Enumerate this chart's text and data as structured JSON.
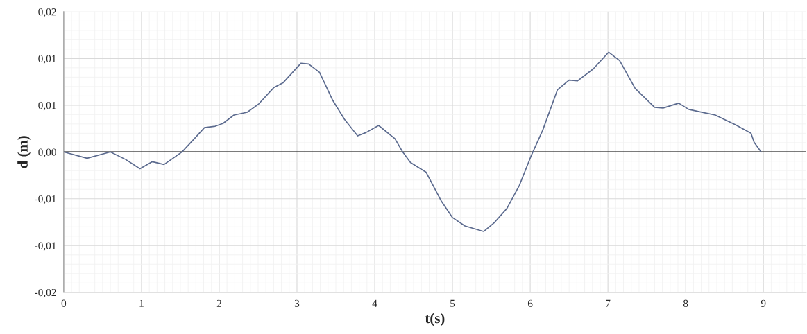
{
  "chart_data": {
    "type": "line",
    "xlabel": "t(s)",
    "ylabel": "d (m)",
    "x": [
      0,
      0.3,
      0.6,
      0.8,
      0.98,
      1.14,
      1.29,
      1.52,
      1.68,
      1.81,
      1.95,
      2.05,
      2.19,
      2.36,
      2.51,
      2.7,
      2.82,
      3.05,
      3.15,
      3.29,
      3.46,
      3.61,
      3.78,
      3.89,
      4.05,
      4.26,
      4.36,
      4.46,
      4.66,
      4.86,
      5.0,
      5.16,
      5.4,
      5.54,
      5.7,
      5.86,
      6.01,
      6.16,
      6.35,
      6.5,
      6.61,
      6.81,
      7.01,
      7.15,
      7.35,
      7.6,
      7.71,
      7.91,
      8.04,
      8.38,
      8.49,
      8.64,
      8.84,
      8.88,
      8.97
    ],
    "series": [
      {
        "color": "#5b6a8e",
        "values": [
          0,
          -0.00067,
          0,
          -0.00082,
          -0.00179,
          -0.00104,
          -0.00134,
          0,
          0.00142,
          0.00261,
          0.00276,
          0.00306,
          0.00395,
          0.00425,
          0.00515,
          0.00687,
          0.00739,
          0.00948,
          0.0094,
          0.00851,
          0.00552,
          0.00351,
          0.00172,
          0.00209,
          0.00284,
          0.00142,
          0,
          -0.00112,
          -0.00216,
          -0.0053,
          -0.00701,
          -0.00791,
          -0.0085,
          -0.00754,
          -0.00604,
          -0.00358,
          -0.00045,
          0.00231,
          0.00664,
          0.00768,
          0.00761,
          0.00888,
          0.01067,
          0.00977,
          0.00679,
          0.00477,
          0.0047,
          0.00522,
          0.00455,
          0.00395,
          0.00351,
          0.00291,
          0.00201,
          0.00104,
          0
        ]
      }
    ],
    "xlim": [
      0,
      9.55
    ],
    "xticks": [
      0,
      1,
      2,
      3,
      4,
      5,
      6,
      7,
      8,
      9
    ],
    "ylim": [
      -0.015,
      0.015
    ],
    "yticks": [
      {
        "value": -0.015,
        "label": "-0,02"
      },
      {
        "value": -0.01,
        "label": "-0,01"
      },
      {
        "value": -0.005,
        "label": "-0,01"
      },
      {
        "value": 0,
        "label": "0,00"
      },
      {
        "value": 0.005,
        "label": "0,01"
      },
      {
        "value": 0.01,
        "label": "0,01"
      },
      {
        "value": 0.015,
        "label": "0,02"
      }
    ],
    "ref_lines": [
      {
        "axis": "y",
        "value": 0,
        "color": "#000000"
      }
    ],
    "grid": true,
    "marker": "none",
    "line_style": "solid"
  }
}
